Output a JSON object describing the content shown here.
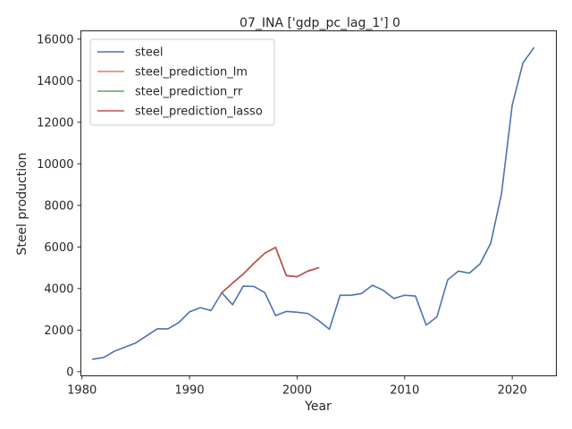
{
  "chart_data": {
    "type": "line",
    "title": "07_INA ['gdp_pc_lag_1'] 0",
    "xlabel": "Year",
    "ylabel": "Steel production",
    "xlim": [
      1979.9,
      2024.1
    ],
    "ylim": [
      -200,
      16400
    ],
    "xticks": [
      1980,
      1990,
      2000,
      2010,
      2020
    ],
    "yticks": [
      0,
      2000,
      4000,
      6000,
      8000,
      10000,
      12000,
      14000,
      16000
    ],
    "grid": false,
    "legend": "upper-left",
    "series": [
      {
        "name": "steel",
        "color": "#4c72b0",
        "x": [
          1981,
          1982,
          1983,
          1984,
          1985,
          1986,
          1987,
          1988,
          1989,
          1990,
          1991,
          1992,
          1993,
          1994,
          1995,
          1996,
          1997,
          1998,
          1999,
          2000,
          2001,
          2002,
          2003,
          2004,
          2005,
          2006,
          2007,
          2008,
          2009,
          2010,
          2011,
          2012,
          2013,
          2014,
          2015,
          2016,
          2017,
          2018,
          2019,
          2020,
          2021,
          2022
        ],
        "y": [
          600,
          680,
          980,
          1180,
          1380,
          1720,
          2060,
          2060,
          2360,
          2880,
          3080,
          2940,
          3800,
          3220,
          4120,
          4100,
          3800,
          2700,
          2900,
          2860,
          2800,
          2460,
          2040,
          3680,
          3680,
          3760,
          4160,
          3920,
          3520,
          3680,
          3640,
          2240,
          2640,
          4420,
          4840,
          4740,
          5180,
          6180,
          8560,
          12840,
          14860,
          15580
        ]
      },
      {
        "name": "steel_prediction_lm",
        "color": "#dd8452",
        "x": [
          1993,
          1994,
          1995,
          1996,
          1997,
          1998,
          1999,
          2000,
          2001,
          2002
        ],
        "y": [
          3800,
          4260,
          4700,
          5220,
          5700,
          5980,
          4620,
          4570,
          4840,
          5000
        ]
      },
      {
        "name": "steel_prediction_rr",
        "color": "#55a868",
        "x": [
          1993,
          1994,
          1995,
          1996,
          1997,
          1998,
          1999,
          2000,
          2001,
          2002
        ],
        "y": [
          3800,
          4260,
          4700,
          5220,
          5700,
          5980,
          4620,
          4570,
          4840,
          5000
        ]
      },
      {
        "name": "steel_prediction_lasso",
        "color": "#c44e52",
        "x": [
          1993,
          1994,
          1995,
          1996,
          1997,
          1998,
          1999,
          2000,
          2001,
          2002
        ],
        "y": [
          3800,
          4260,
          4700,
          5220,
          5700,
          5980,
          4620,
          4570,
          4840,
          5000
        ]
      }
    ]
  }
}
